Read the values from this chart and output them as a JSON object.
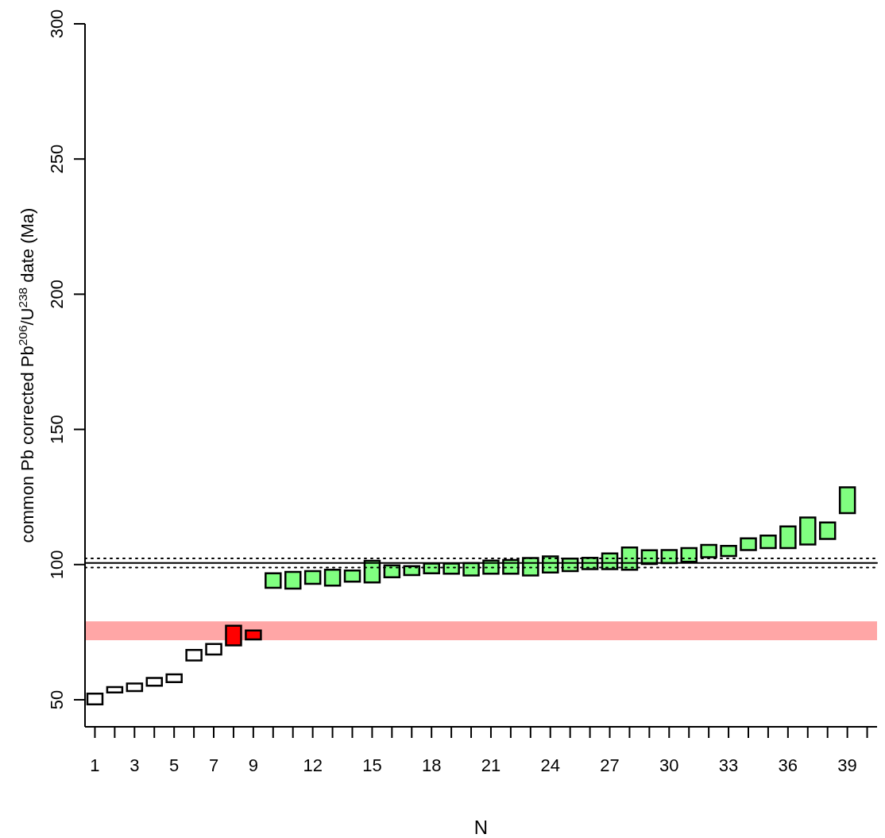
{
  "chart_data": {
    "type": "bar",
    "xlabel": "N",
    "ylabel": "common Pb corrected Pb$^{206}$/U$^{238}$ date (Ma)",
    "x": [
      1,
      2,
      3,
      4,
      5,
      6,
      7,
      8,
      9,
      10,
      11,
      12,
      13,
      14,
      15,
      16,
      17,
      18,
      19,
      20,
      21,
      22,
      23,
      24,
      25,
      26,
      27,
      28,
      29,
      30,
      31,
      32,
      33,
      34,
      35,
      36,
      37,
      38,
      39
    ],
    "base": [
      48.3,
      52.7,
      53.2,
      55.2,
      56.5,
      64.5,
      66.7,
      70.1,
      72.3,
      91.4,
      91.1,
      92.9,
      92.2,
      93.7,
      93.4,
      95.3,
      96.1,
      96.8,
      96.6,
      96.0,
      96.6,
      96.6,
      96.0,
      97.1,
      97.6,
      98.3,
      98.3,
      98.1,
      100.2,
      100.5,
      101.0,
      102.7,
      103.2,
      105.4,
      106.1,
      106.1,
      107.4,
      109.5,
      119.0
    ],
    "values": [
      4.0,
      2.0,
      2.8,
      2.9,
      2.9,
      3.9,
      3.9,
      7.3,
      3.3,
      5.4,
      6.2,
      4.7,
      5.9,
      4.1,
      8.0,
      4.4,
      3.3,
      3.6,
      3.8,
      4.5,
      4.9,
      5.1,
      6.4,
      5.9,
      4.6,
      4.2,
      5.8,
      8.2,
      5.1,
      4.9,
      5.1,
      4.6,
      3.7,
      4.3,
      4.6,
      8.0,
      10.0,
      6.1,
      9.6
    ],
    "colors": [
      "#ffffff",
      "#ffffff",
      "#ffffff",
      "#ffffff",
      "#ffffff",
      "#ffffff",
      "#ffffff",
      "#ff0000",
      "#ff0000",
      "#80ff80",
      "#80ff80",
      "#80ff80",
      "#80ff80",
      "#80ff80",
      "#80ff80",
      "#80ff80",
      "#80ff80",
      "#80ff80",
      "#80ff80",
      "#80ff80",
      "#80ff80",
      "#80ff80",
      "#80ff80",
      "#80ff80",
      "#80ff80",
      "#80ff80",
      "#80ff80",
      "#80ff80",
      "#80ff80",
      "#80ff80",
      "#80ff80",
      "#80ff80",
      "#80ff80",
      "#80ff80",
      "#80ff80",
      "#80ff80",
      "#80ff80",
      "#80ff80",
      "#80ff80"
    ],
    "xlim": [
      0.5,
      40.5
    ],
    "xticks": [
      1,
      {
        "value": 2,
        "label": null
      },
      3,
      {
        "value": 4,
        "label": null
      },
      5,
      {
        "value": 6,
        "label": null
      },
      7,
      {
        "value": 8,
        "label": null
      },
      9,
      {
        "value": 10,
        "label": null
      },
      {
        "value": 11,
        "label": null
      },
      12,
      {
        "value": 13,
        "label": null
      },
      {
        "value": 14,
        "label": null
      },
      15,
      {
        "value": 16,
        "label": null
      },
      {
        "value": 17,
        "label": null
      },
      18,
      {
        "value": 19,
        "label": null
      },
      {
        "value": 20,
        "label": null
      },
      21,
      {
        "value": 22,
        "label": null
      },
      {
        "value": 23,
        "label": null
      },
      24,
      {
        "value": 25,
        "label": null
      },
      {
        "value": 26,
        "label": null
      },
      27,
      {
        "value": 28,
        "label": null
      },
      {
        "value": 29,
        "label": null
      },
      30,
      {
        "value": 31,
        "label": null
      },
      {
        "value": 32,
        "label": null
      },
      33,
      {
        "value": 34,
        "label": null
      },
      {
        "value": 35,
        "label": null
      },
      36,
      {
        "value": 37,
        "label": null
      },
      {
        "value": 38,
        "label": null
      },
      39,
      {
        "value": 40,
        "label": null
      }
    ],
    "ylim": [
      40,
      300
    ],
    "yticks": [
      50,
      100,
      150,
      200,
      250,
      300
    ],
    "ref_lines": [
      {
        "axis": "y",
        "value": 100.6,
        "color": "#000000",
        "line_style": "solid"
      },
      {
        "axis": "y",
        "value": 102.3,
        "color": "#000000",
        "line_style": "dotted"
      },
      {
        "axis": "y",
        "value": 98.9,
        "color": "#000000",
        "line_style": "dotted"
      }
    ],
    "bands": [
      {
        "axis": "y",
        "from": 72.0,
        "to": 79.0,
        "color": "#ffa6a6"
      }
    ]
  }
}
